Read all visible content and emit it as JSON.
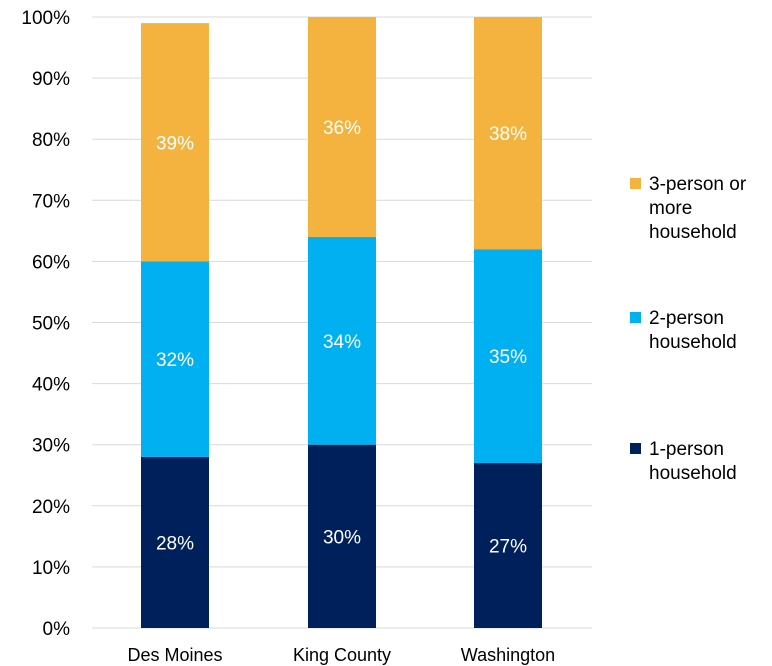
{
  "chart_data": {
    "type": "bar",
    "stacked": true,
    "categories": [
      "Des Moines",
      "King County",
      "Washington"
    ],
    "series": [
      {
        "name": "1-person household",
        "values": [
          28,
          30,
          27
        ],
        "labels": [
          "28%",
          "30%",
          "27%"
        ],
        "color": "#00205B"
      },
      {
        "name": "2-person household",
        "values": [
          32,
          34,
          35
        ],
        "labels": [
          "32%",
          "34%",
          "35%"
        ],
        "color": "#00B0F0"
      },
      {
        "name": "3-person or more household",
        "values": [
          39,
          36,
          38
        ],
        "labels": [
          "39%",
          "36%",
          "38%"
        ],
        "color": "#F4B33F"
      }
    ],
    "legend_order": [
      2,
      1,
      0
    ],
    "legend_lines": [
      [
        "3-person or",
        "more",
        "household"
      ],
      [
        "2-person",
        "household"
      ],
      [
        "1-person",
        "household"
      ]
    ],
    "ylim": [
      0,
      100
    ],
    "yticks": [
      0,
      10,
      20,
      30,
      40,
      50,
      60,
      70,
      80,
      90,
      100
    ],
    "ytick_labels": [
      "0%",
      "10%",
      "20%",
      "30%",
      "40%",
      "50%",
      "60%",
      "70%",
      "80%",
      "90%",
      "100%"
    ],
    "grid": true,
    "grid_color": "#D9D9D9",
    "legend_position": "right",
    "title": "",
    "xlabel": "",
    "ylabel": ""
  }
}
